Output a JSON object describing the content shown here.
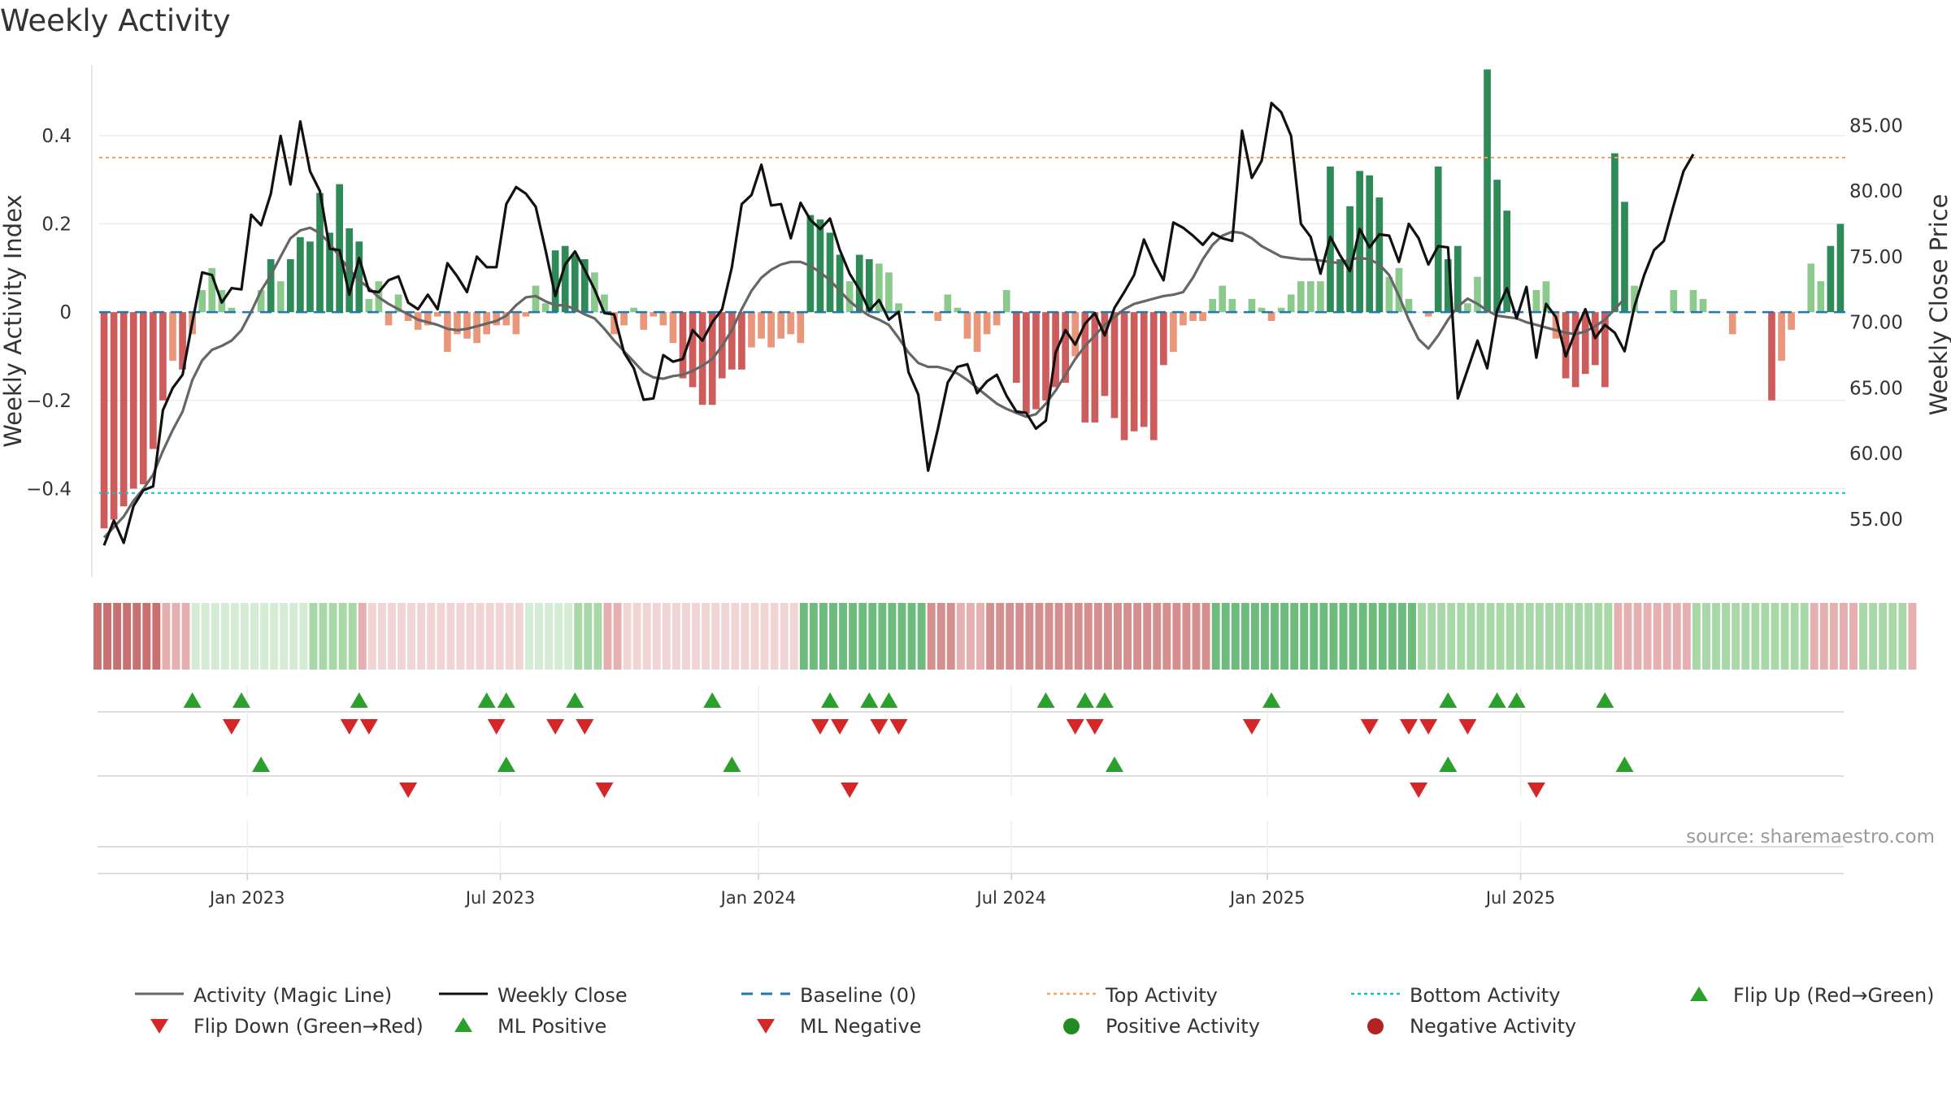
{
  "chart_data": {
    "type": "bar",
    "title": "Weekly Activity",
    "ylabel": "Weekly Activity Index",
    "ylabel_right": "Weekly Close Price",
    "source": "source: sharemaestro.com",
    "ylim": [
      -0.6,
      0.56
    ],
    "y_ticks": [
      0.4,
      0.2,
      0,
      -0.2,
      -0.4
    ],
    "y_tick_labels": [
      "0.4",
      "0.2",
      "0",
      "−0.2",
      "−0.4"
    ],
    "y2lim": [
      50.6,
      89.6
    ],
    "y2_ticks": [
      85,
      80,
      75,
      70,
      65,
      60,
      55
    ],
    "y2_tick_labels": [
      "85.00",
      "80.00",
      "75.00",
      "70.00",
      "65.00",
      "60.00",
      "55.00"
    ],
    "top_activity": 0.35,
    "bottom_activity": -0.41,
    "baseline": 0,
    "x_labels": [
      "Jan 2023",
      "Jul 2023",
      "Jan 2024",
      "Jul 2024",
      "Jan 2025",
      "Jul 2025"
    ],
    "x_label_weeks": [
      14.6,
      40.4,
      66.7,
      92.5,
      118.6,
      144.4
    ],
    "activity": [
      -0.49,
      -0.47,
      -0.44,
      -0.4,
      -0.39,
      -0.31,
      -0.2,
      -0.11,
      -0.13,
      -0.05,
      0.05,
      0.1,
      0.05,
      0.01,
      0.0,
      0.0,
      0.05,
      0.12,
      0.07,
      0.12,
      0.17,
      0.16,
      0.27,
      0.18,
      0.29,
      0.19,
      0.16,
      0.03,
      0.07,
      -0.03,
      0.04,
      -0.02,
      -0.04,
      -0.03,
      -0.01,
      -0.09,
      -0.05,
      -0.06,
      -0.07,
      -0.05,
      -0.03,
      -0.03,
      -0.05,
      -0.01,
      0.06,
      0.02,
      0.14,
      0.15,
      0.13,
      0.12,
      0.09,
      0.04,
      -0.05,
      -0.03,
      0.01,
      -0.04,
      -0.01,
      -0.03,
      -0.07,
      -0.15,
      -0.17,
      -0.21,
      -0.21,
      -0.15,
      -0.13,
      -0.13,
      -0.08,
      -0.06,
      -0.08,
      -0.06,
      -0.05,
      -0.07,
      0.22,
      0.21,
      0.18,
      0.13,
      0.07,
      0.13,
      0.12,
      0.11,
      0.09,
      0.02,
      0.0,
      0.0,
      0.0,
      -0.02,
      0.04,
      0.01,
      -0.06,
      -0.09,
      -0.05,
      -0.03,
      0.05,
      -0.16,
      -0.23,
      -0.22,
      -0.2,
      -0.17,
      -0.16,
      -0.1,
      -0.25,
      -0.25,
      -0.19,
      -0.24,
      -0.29,
      -0.27,
      -0.26,
      -0.29,
      -0.12,
      -0.09,
      -0.03,
      -0.02,
      -0.02,
      0.03,
      0.06,
      0.03,
      0.0,
      0.03,
      0.01,
      -0.02,
      0.01,
      0.04,
      0.07,
      0.07,
      0.07,
      0.33,
      0.12,
      0.24,
      0.32,
      0.31,
      0.26,
      0.08,
      0.1,
      0.03,
      0.0,
      -0.01,
      0.33,
      0.12,
      0.15,
      0.02,
      0.08,
      0.55,
      0.3,
      0.23,
      0.0,
      0.0,
      0.05,
      0.07,
      -0.06,
      -0.15,
      -0.17,
      -0.14,
      -0.12,
      -0.17,
      0.36,
      0.25,
      0.06,
      0.0,
      0.0,
      0.0,
      0.05,
      0.0,
      0.05,
      0.03,
      0.0,
      0.0,
      -0.05,
      0.0,
      0.0,
      0.0,
      -0.2,
      -0.11,
      -0.04,
      0.0,
      0.11,
      0.07,
      0.15,
      0.2
    ],
    "weekly_close": [
      53.0,
      54.9,
      53.2,
      56.0,
      57.2,
      57.5,
      63.3,
      65.0,
      66.0,
      70.0,
      73.8,
      73.6,
      71.5,
      72.6,
      72.5,
      78.2,
      77.4,
      79.8,
      84.2,
      80.5,
      85.3,
      81.5,
      80.0,
      75.6,
      75.5,
      72.1,
      74.9,
      72.4,
      72.3,
      73.2,
      73.5,
      71.5,
      71.0,
      72.1,
      71.0,
      74.5,
      73.5,
      72.3,
      75.0,
      74.2,
      74.2,
      79.0,
      80.3,
      79.8,
      78.8,
      75.5,
      72.0,
      74.4,
      75.4,
      74.0,
      72.5,
      70.7,
      70.6,
      67.7,
      66.5,
      64.1,
      64.2,
      67.5,
      67.0,
      67.2,
      69.4,
      68.6,
      70.0,
      71.0,
      74.2,
      79.0,
      79.7,
      82.0,
      78.9,
      79.0,
      76.4,
      79.1,
      77.8,
      77.1,
      77.9,
      75.5,
      73.7,
      72.5,
      70.9,
      71.7,
      70.2,
      70.8,
      66.2,
      64.5,
      58.7,
      61.9,
      65.4,
      66.6,
      66.8,
      64.6,
      65.5,
      66.0,
      64.4,
      63.2,
      63.1,
      61.9,
      62.5,
      67.7,
      69.4,
      68.3,
      69.9,
      70.7,
      69.0,
      71.1,
      72.3,
      73.6,
      76.3,
      74.6,
      73.2,
      77.6,
      77.2,
      76.6,
      75.9,
      76.8,
      76.4,
      76.2,
      84.6,
      81.0,
      82.3,
      86.7,
      86.0,
      84.2,
      77.5,
      76.5,
      73.7,
      76.5,
      75.1,
      73.9,
      77.1,
      75.7,
      76.7,
      76.6,
      74.6,
      77.5,
      76.4,
      74.4,
      75.8,
      75.7,
      64.2,
      66.4,
      68.6,
      66.5,
      70.9,
      72.6,
      70.3,
      72.7,
      67.3,
      71.4,
      70.4,
      67.4,
      69.3,
      71.0,
      68.8,
      69.8,
      69.2,
      67.8,
      71.2,
      73.6,
      75.5,
      76.2,
      78.9,
      81.5,
      82.8
    ],
    "magic_line": [
      53.6,
      54.4,
      55.2,
      56.4,
      57.3,
      58.4,
      60.2,
      61.8,
      63.2,
      65.6,
      67.1,
      67.9,
      68.2,
      68.6,
      69.4,
      70.8,
      72.4,
      73.6,
      75.0,
      76.4,
      77.0,
      77.2,
      76.8,
      76.0,
      75.0,
      74.0,
      73.2,
      72.6,
      71.9,
      71.4,
      71.0,
      70.6,
      70.2,
      70.0,
      69.8,
      69.5,
      69.4,
      69.5,
      69.7,
      69.9,
      70.1,
      70.5,
      71.3,
      71.9,
      72.0,
      71.6,
      71.3,
      71.3,
      71.0,
      70.6,
      70.3,
      69.5,
      68.6,
      67.8,
      67.0,
      66.2,
      65.8,
      65.7,
      65.9,
      66.0,
      66.3,
      66.7,
      67.2,
      68.2,
      69.4,
      71.0,
      72.4,
      73.4,
      74.0,
      74.4,
      74.6,
      74.6,
      74.3,
      73.8,
      73.2,
      72.4,
      71.6,
      71.0,
      70.5,
      70.2,
      69.8,
      68.8,
      67.7,
      66.9,
      66.6,
      66.6,
      66.4,
      66.1,
      65.6,
      65.0,
      64.4,
      63.8,
      63.4,
      63.1,
      62.8,
      63.0,
      63.8,
      64.8,
      66.0,
      67.2,
      68.2,
      69.0,
      69.8,
      70.4,
      71.0,
      71.4,
      71.6,
      71.8,
      72.0,
      72.1,
      72.3,
      73.4,
      74.8,
      75.9,
      76.6,
      76.9,
      76.8,
      76.4,
      75.8,
      75.4,
      75.0,
      74.9,
      74.8,
      74.8,
      74.7,
      74.6,
      74.5,
      74.8,
      74.9,
      74.8,
      74.4,
      73.6,
      72.0,
      70.2,
      68.7,
      68.0,
      69.0,
      70.2,
      71.2,
      71.8,
      71.4,
      70.9,
      70.5,
      70.4,
      70.3,
      70.0,
      69.8,
      69.6,
      69.4,
      69.2,
      69.1,
      69.3,
      69.7,
      70.2,
      71.0,
      71.8
    ],
    "strip_levels": [
      3,
      3,
      3,
      3,
      3,
      3,
      3,
      1,
      1,
      1,
      0,
      0,
      0,
      0,
      0,
      0,
      0,
      0,
      0,
      0,
      0,
      0,
      1,
      1,
      1,
      1,
      1,
      1,
      0,
      0,
      0,
      0,
      0,
      0,
      0,
      0,
      0,
      0,
      0,
      0,
      0,
      0,
      0,
      0,
      0,
      0,
      0,
      0,
      0,
      1,
      1,
      1,
      1,
      1,
      0,
      0,
      0,
      0,
      0,
      0,
      0,
      0,
      0,
      0,
      0,
      0,
      0,
      0,
      0,
      0,
      0,
      0,
      2,
      2,
      2,
      2,
      2,
      2,
      2,
      2,
      2,
      2,
      2,
      2,
      2,
      2,
      2,
      2,
      1,
      1,
      1,
      2,
      2,
      2,
      2,
      2,
      2,
      2,
      2,
      2,
      2,
      2,
      2,
      2,
      2,
      2,
      2,
      2,
      2,
      2,
      2,
      2,
      2,
      2,
      2,
      2,
      2,
      2,
      2,
      2,
      2,
      2,
      2,
      2,
      2,
      2,
      2,
      2,
      2,
      2,
      2,
      2,
      2,
      2,
      2,
      1,
      1,
      1,
      1,
      1,
      1,
      1,
      1,
      1,
      1,
      1,
      1,
      1,
      1,
      1,
      1,
      1,
      1,
      1,
      1,
      1,
      1,
      1,
      1,
      1,
      1,
      1,
      1,
      1,
      1,
      1,
      1,
      1,
      1,
      1,
      1,
      1,
      1,
      1,
      1,
      1,
      1,
      1,
      1,
      1,
      1,
      1,
      1,
      1,
      1,
      1
    ],
    "strip_signs": [
      -1,
      -1,
      -1,
      -1,
      -1,
      -1,
      -1,
      -1,
      -1,
      -1,
      1,
      1,
      1,
      1,
      1,
      1,
      1,
      1,
      1,
      1,
      1,
      1,
      1,
      1,
      1,
      1,
      1,
      -1,
      -1,
      -1,
      -1,
      -1,
      -1,
      -1,
      -1,
      -1,
      -1,
      -1,
      -1,
      -1,
      -1,
      -1,
      -1,
      -1,
      1,
      1,
      1,
      1,
      1,
      1,
      1,
      1,
      -1,
      -1,
      -1,
      -1,
      -1,
      -1,
      -1,
      -1,
      -1,
      -1,
      -1,
      -1,
      -1,
      -1,
      -1,
      -1,
      -1,
      -1,
      -1,
      -1,
      1,
      1,
      1,
      1,
      1,
      1,
      1,
      1,
      1,
      1,
      1,
      1,
      1,
      -1,
      -1,
      -1,
      -1,
      -1,
      -1,
      -1,
      -1,
      -1,
      -1,
      -1,
      -1,
      -1,
      -1,
      -1,
      -1,
      -1,
      -1,
      -1,
      -1,
      -1,
      -1,
      -1,
      -1,
      -1,
      -1,
      -1,
      -1,
      -1,
      1,
      1,
      1,
      1,
      1,
      1,
      1,
      1,
      1,
      1,
      1,
      1,
      1,
      1,
      1,
      1,
      1,
      1,
      1,
      1,
      1,
      1,
      1,
      1,
      1,
      1,
      1,
      1,
      1,
      1,
      1,
      1,
      1,
      1,
      1,
      1,
      1,
      1,
      1,
      1,
      1,
      -1,
      -1,
      -1,
      -1,
      -1,
      -1,
      -1,
      -1,
      1,
      1,
      1,
      1,
      1,
      1,
      1,
      1,
      1,
      1,
      1,
      1,
      -1,
      -1,
      -1,
      -1,
      -1,
      1,
      1,
      1,
      1,
      1
    ],
    "flip_up_weeks": [
      9,
      14,
      26,
      39,
      41,
      48,
      62,
      74,
      78,
      80,
      96,
      100,
      102,
      119,
      137,
      142,
      144,
      153
    ],
    "flip_down_weeks": [
      13,
      25,
      27,
      40,
      46,
      49,
      73,
      75,
      79,
      81,
      99,
      101,
      117,
      129,
      133,
      135,
      139
    ],
    "ml_positive_weeks": [
      16,
      41,
      64,
      103,
      137,
      155
    ],
    "ml_negative_weeks": [
      31,
      51,
      76,
      134,
      146
    ],
    "colors": {
      "bar_pos_strong": "#2e8b57",
      "bar_pos_light": "#8cc98c",
      "bar_neg_strong": "#cd5c5c",
      "bar_neg_light": "#e9967a",
      "close": "#111111",
      "magic_line": "#666666",
      "baseline": "#1f77b4",
      "top_activity": "#f4a261",
      "bottom_activity": "#17becf",
      "flip_up": "#2ca02c",
      "flip_down": "#d62728",
      "positive": "#228b22",
      "negative": "#b22222"
    }
  },
  "legend": [
    {
      "label": "Activity (Magic Line)",
      "symbol": "line",
      "color": "#666666"
    },
    {
      "label": "Weekly Close",
      "symbol": "line",
      "color": "#111111"
    },
    {
      "label": "Baseline (0)",
      "symbol": "dashed",
      "color": "#1f77b4"
    },
    {
      "label": "Top Activity",
      "symbol": "dotted",
      "color": "#f4a261"
    },
    {
      "label": "Bottom Activity",
      "symbol": "dotted",
      "color": "#17becf"
    },
    {
      "label": "Flip Up (Red→Green)",
      "symbol": "triangle-up",
      "color": "#2ca02c"
    },
    {
      "label": "Flip Down (Green→Red)",
      "symbol": "triangle-down",
      "color": "#d62728"
    },
    {
      "label": "ML Positive",
      "symbol": "triangle-up",
      "color": "#2ca02c"
    },
    {
      "label": "ML Negative",
      "symbol": "triangle-down",
      "color": "#d62728"
    },
    {
      "label": "Positive Activity",
      "symbol": "circle",
      "color": "#228b22"
    },
    {
      "label": "Negative Activity",
      "symbol": "circle",
      "color": "#b22222"
    }
  ]
}
